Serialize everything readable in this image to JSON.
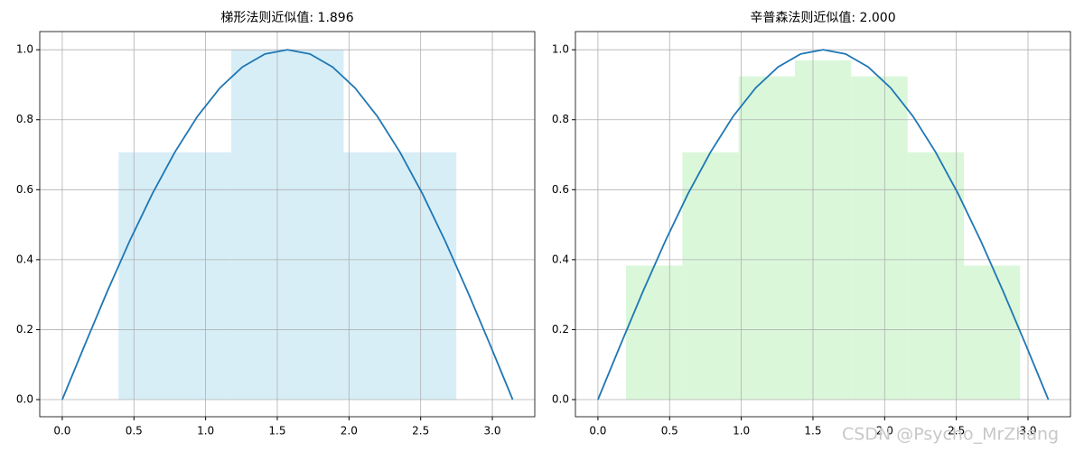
{
  "chart_data": [
    {
      "type": "combo",
      "title": "梯形法则近似值: 1.896",
      "series": [
        {
          "type": "bar",
          "color": "#d7eef7",
          "bins": [
            0.393,
            1.178,
            1.963,
            2.749
          ],
          "values": [
            0.707,
            1.0,
            0.707
          ]
        },
        {
          "type": "line",
          "color": "#1f77b4",
          "x": [
            0,
            0.157,
            0.314,
            0.471,
            0.628,
            0.785,
            0.942,
            1.1,
            1.257,
            1.414,
            1.571,
            1.728,
            1.885,
            2.042,
            2.199,
            2.356,
            2.513,
            2.67,
            2.827,
            2.985,
            3.142
          ],
          "values": [
            0,
            0.156,
            0.309,
            0.454,
            0.588,
            0.707,
            0.809,
            0.891,
            0.951,
            0.988,
            1,
            0.988,
            0.951,
            0.891,
            0.809,
            0.707,
            0.588,
            0.454,
            0.309,
            0.156,
            0
          ]
        }
      ],
      "xlim": [
        -0.157,
        3.296
      ],
      "ylim": [
        -0.049,
        1.052
      ],
      "xticks": [
        {
          "value": 0,
          "label": "0.0"
        },
        0.5,
        {
          "value": 1,
          "label": "1.0"
        },
        1.5,
        {
          "value": 2,
          "label": "2.0"
        },
        2.5,
        {
          "value": 3,
          "label": "3.0"
        }
      ],
      "yticks": [
        {
          "value": 0,
          "label": "0.0"
        },
        0.2,
        0.4,
        0.6,
        0.8,
        {
          "value": 1,
          "label": "1.0"
        }
      ],
      "grid": true
    },
    {
      "type": "combo",
      "title": "辛普森法则近似值: 2.000",
      "series": [
        {
          "type": "bar",
          "color": "#daf7da",
          "bins": [
            0.196,
            0.589,
            0.982,
            1.374,
            1.767,
            2.16,
            2.553,
            2.945
          ],
          "values": [
            0.383,
            0.707,
            0.924,
            0.97,
            0.924,
            0.707,
            0.383
          ]
        },
        {
          "type": "line",
          "color": "#1f77b4",
          "x": [
            0,
            0.157,
            0.314,
            0.471,
            0.628,
            0.785,
            0.942,
            1.1,
            1.257,
            1.414,
            1.571,
            1.728,
            1.885,
            2.042,
            2.199,
            2.356,
            2.513,
            2.67,
            2.827,
            2.985,
            3.142
          ],
          "values": [
            0,
            0.156,
            0.309,
            0.454,
            0.588,
            0.707,
            0.809,
            0.891,
            0.951,
            0.988,
            1,
            0.988,
            0.951,
            0.891,
            0.809,
            0.707,
            0.588,
            0.454,
            0.309,
            0.156,
            0
          ]
        }
      ],
      "xlim": [
        -0.157,
        3.296
      ],
      "ylim": [
        -0.049,
        1.052
      ],
      "xticks": [
        {
          "value": 0,
          "label": "0.0"
        },
        0.5,
        {
          "value": 1,
          "label": "1.0"
        },
        1.5,
        {
          "value": 2,
          "label": "2.0"
        },
        2.5,
        {
          "value": 3,
          "label": "3.0"
        }
      ],
      "yticks": [
        {
          "value": 0,
          "label": "0.0"
        },
        0.2,
        0.4,
        0.6,
        0.8,
        {
          "value": 1,
          "label": "1.0"
        }
      ],
      "grid": true
    }
  ],
  "watermark": "CSDN @Psycho_MrZhang"
}
